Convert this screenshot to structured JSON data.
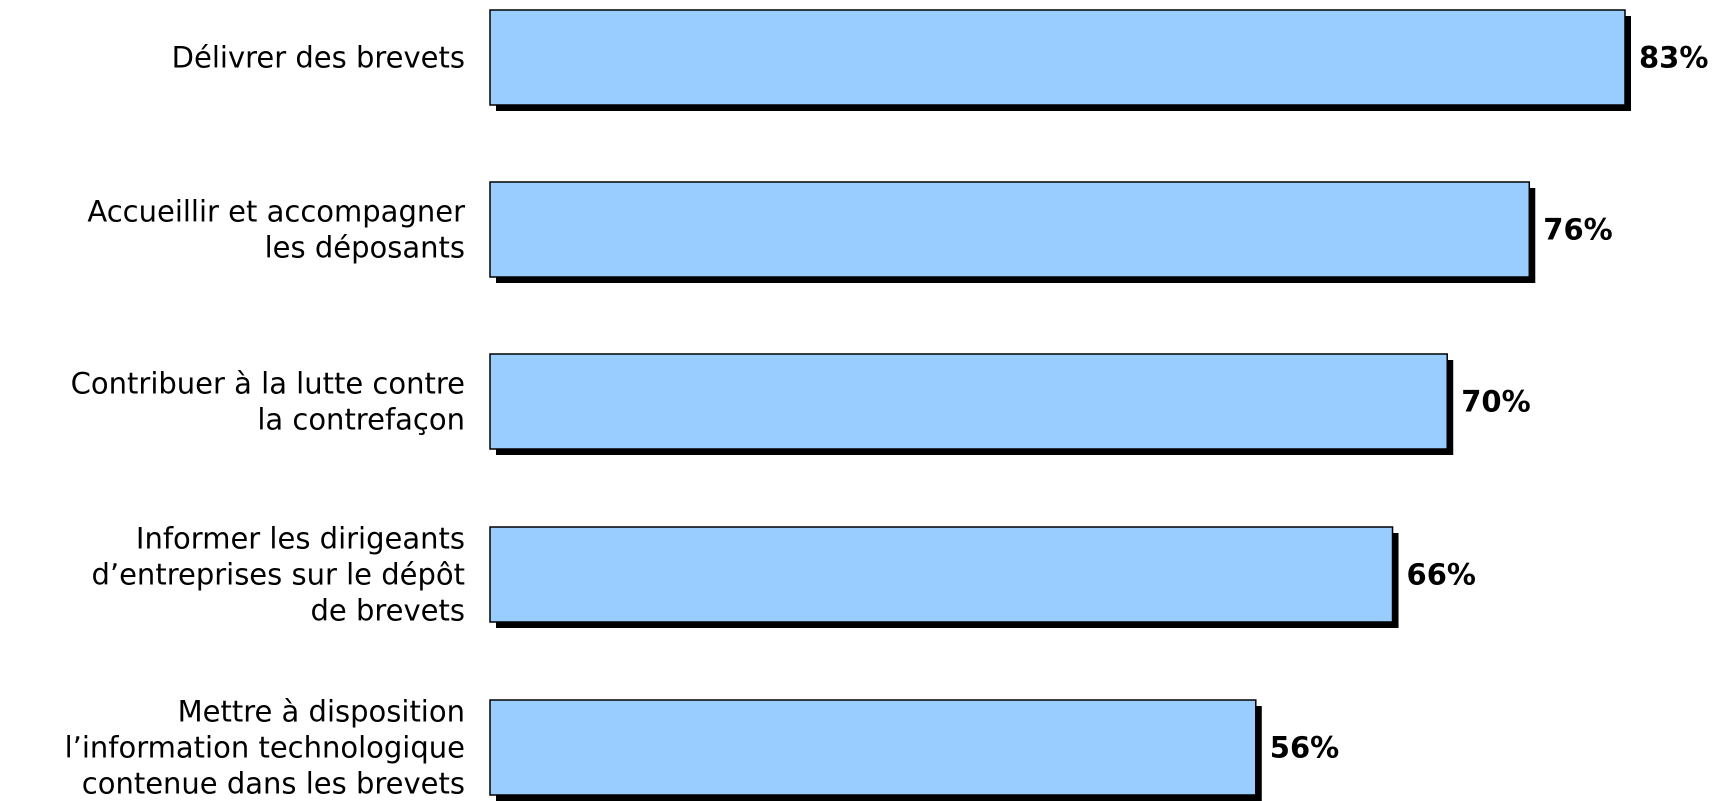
{
  "chart_data": {
    "type": "bar",
    "orientation": "horizontal",
    "categories": [
      "Délivrer des brevets",
      "Accueillir et accompagner\nles déposants",
      "Contribuer à la lutte contre\nla contrefaçon",
      "Informer les dirigeants\nd’entreprises sur le dépôt\nde brevets",
      "Mettre à disposition\nl’information technologique\ncontenue dans les brevets"
    ],
    "values": [
      83,
      76,
      70,
      66,
      56
    ],
    "value_labels": [
      "83%",
      "76%",
      "70%",
      "66%",
      "56%"
    ],
    "xlim": [
      0,
      83
    ],
    "grid": false,
    "legend": "none",
    "colors": {
      "bar_fill": "#99ccff",
      "bar_stroke": "#000000",
      "shadow": "#000000"
    }
  }
}
